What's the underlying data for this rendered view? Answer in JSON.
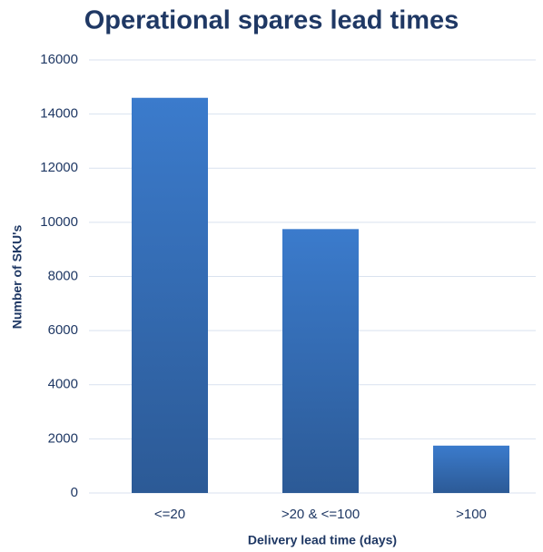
{
  "chart_data": {
    "type": "bar",
    "title": "Operational spares lead times",
    "x_label": "Delivery lead time (days)",
    "y_label": "Number of SKU's",
    "categories": [
      "<=20",
      ">20 & <=100",
      ">100"
    ],
    "values": [
      14600,
      9750,
      1750
    ],
    "color": "#3b7bcc",
    "ylim": [
      0,
      16000
    ],
    "yticks": [
      0,
      2000,
      4000,
      6000,
      8000,
      10000,
      12000,
      14000,
      16000
    ],
    "grid": true
  }
}
